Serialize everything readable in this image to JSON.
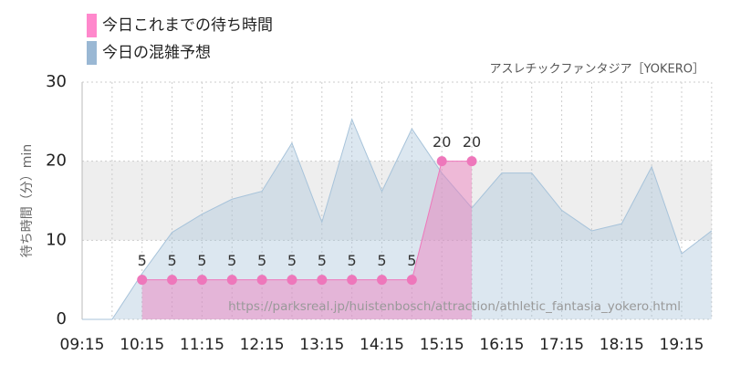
{
  "chart_data": {
    "type": "area",
    "subtitle": "アスレチックファンタジア［YOKERO］",
    "watermark": "https://parksreal.jp/huistenbosch/attraction/athletic_fantasia_yokero.html",
    "y_label": "待ち時間（分）min",
    "categories": [
      "09:15",
      null,
      "10:15",
      null,
      "11:15",
      null,
      "12:15",
      null,
      "13:15",
      null,
      "14:15",
      null,
      "15:15",
      null,
      "16:15",
      null,
      "17:15",
      null,
      "18:15",
      null,
      "19:15",
      null
    ],
    "series": [
      {
        "name": "今日これまでの待ち時間",
        "color": "#ee77bb",
        "values": [
          null,
          null,
          5,
          5,
          5,
          5,
          5,
          5,
          5,
          5,
          5,
          5,
          20,
          20,
          null,
          null,
          null,
          null,
          null,
          null,
          null,
          null
        ]
      },
      {
        "name": "今日の混雑予想",
        "color": "#a7c3da",
        "values": [
          0,
          0,
          5.8,
          11,
          13.3,
          15.2,
          16.2,
          22.3,
          12.3,
          25.3,
          16.2,
          24.1,
          18.5,
          14.1,
          18.5,
          18.5,
          13.8,
          11.2,
          12.1,
          19.3,
          8.3,
          11.2
        ]
      }
    ],
    "ylim": [
      0,
      30
    ],
    "yticks": [
      0,
      10,
      20,
      30
    ],
    "grid": true
  }
}
